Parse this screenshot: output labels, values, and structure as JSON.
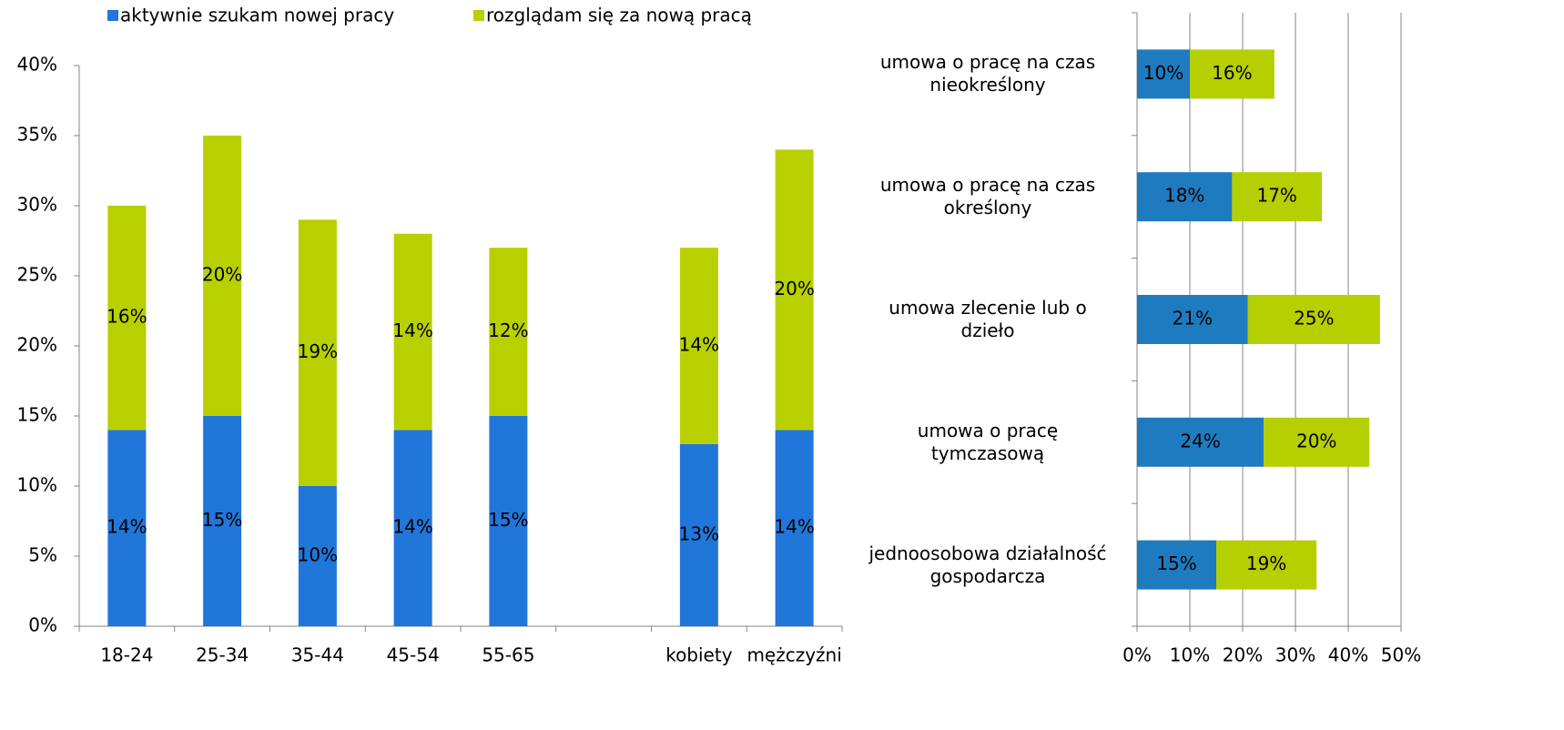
{
  "chart_data": [
    {
      "type": "bar",
      "stacked": true,
      "categories": [
        "18-24",
        "25-34",
        "35-44",
        "45-54",
        "55-65",
        null,
        "kobiety",
        "mężczyźni"
      ],
      "series": [
        {
          "name": "aktywnie szukam nowej pracy",
          "color": "#2176d9",
          "values": [
            14,
            15,
            10,
            14,
            15,
            null,
            13,
            14
          ],
          "value_labels": [
            "14%",
            "15%",
            "10%",
            "14%",
            "15%",
            null,
            "13%",
            "14%"
          ]
        },
        {
          "name": "rozglądam się za nową pracą",
          "color": "#b8d000",
          "values": [
            16,
            20,
            19,
            14,
            12,
            null,
            14,
            20
          ],
          "value_labels": [
            "16%",
            "20%",
            "19%",
            "14%",
            "12%",
            null,
            "14%",
            "20%"
          ]
        }
      ],
      "ylim": [
        0,
        40
      ],
      "yticks": [
        {
          "value": 0,
          "label": "0%"
        },
        {
          "value": 5,
          "label": "5%"
        },
        {
          "value": 10,
          "label": "10%"
        },
        {
          "value": 15,
          "label": "15%"
        },
        {
          "value": 20,
          "label": "20%"
        },
        {
          "value": 25,
          "label": "25%"
        },
        {
          "value": 30,
          "label": "30%"
        },
        {
          "value": 35,
          "label": "35%"
        },
        {
          "value": 40,
          "label": "40%"
        }
      ],
      "legend": "top",
      "grid": false
    },
    {
      "type": "barh",
      "stacked": true,
      "categories": [
        "umowa o pracę na czas nieokreślony",
        "umowa o pracę na czas określony",
        "umowa zlecenie lub o dzieło",
        "umowa o pracę tymczasową",
        "jednoosobowa działalność gospodarcza"
      ],
      "series": [
        {
          "color": "#1f7bc0",
          "values": [
            10,
            18,
            21,
            24,
            15
          ],
          "value_labels": [
            "10%",
            "18%",
            "21%",
            "24%",
            "15%"
          ]
        },
        {
          "color": "#b5cf00",
          "values": [
            16,
            17,
            25,
            20,
            19
          ],
          "value_labels": [
            "16%",
            "17%",
            "25%",
            "20%",
            "19%"
          ]
        }
      ],
      "xlim": [
        0,
        50
      ],
      "xticks": [
        {
          "value": 0,
          "label": "0%"
        },
        {
          "value": 10,
          "label": "10%"
        },
        {
          "value": 20,
          "label": "20%"
        },
        {
          "value": 30,
          "label": "30%"
        },
        {
          "value": 40,
          "label": "40%"
        },
        {
          "value": 50,
          "label": "50%"
        }
      ],
      "grid": true
    }
  ]
}
